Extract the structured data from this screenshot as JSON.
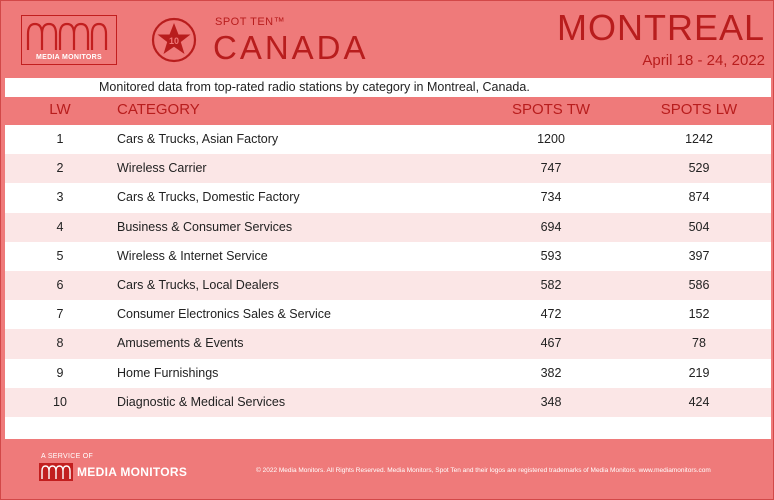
{
  "header": {
    "logo_text": "MEDIA MONITORS",
    "badge_number": "10",
    "spot_ten": "SPOT TEN™",
    "country": "CANADA",
    "city": "MONTREAL",
    "dates": "April 18 - 24, 2022"
  },
  "subtitle": "Monitored data from top-rated radio stations by category in Montreal, Canada.",
  "columns": {
    "lw": "LW",
    "category": "CATEGORY",
    "spots_tw": "SPOTS TW",
    "spots_lw": "SPOTS LW"
  },
  "rows": [
    {
      "lw": "1",
      "category": "Cars & Trucks, Asian Factory",
      "tw": "1200",
      "lw_spots": "1242"
    },
    {
      "lw": "2",
      "category": "Wireless Carrier",
      "tw": "747",
      "lw_spots": "529"
    },
    {
      "lw": "3",
      "category": "Cars & Trucks, Domestic Factory",
      "tw": "734",
      "lw_spots": "874"
    },
    {
      "lw": "4",
      "category": "Business & Consumer Services",
      "tw": "694",
      "lw_spots": "504"
    },
    {
      "lw": "5",
      "category": "Wireless & Internet Service",
      "tw": "593",
      "lw_spots": "397"
    },
    {
      "lw": "6",
      "category": "Cars & Trucks, Local Dealers",
      "tw": "582",
      "lw_spots": "586"
    },
    {
      "lw": "7",
      "category": "Consumer Electronics Sales & Service",
      "tw": "472",
      "lw_spots": "152"
    },
    {
      "lw": "8",
      "category": "Amusements & Events",
      "tw": "467",
      "lw_spots": "78"
    },
    {
      "lw": "9",
      "category": "Home Furnishings",
      "tw": "382",
      "lw_spots": "219"
    },
    {
      "lw": "10",
      "category": "Diagnostic & Medical Services",
      "tw": "348",
      "lw_spots": "424"
    }
  ],
  "footer": {
    "service_of": "A SERVICE OF",
    "logo_text": "MEDIA MONITORS",
    "copyright": "© 2022 Media Monitors. All Rights Reserved. Media Monitors, Spot Ten and their logos are registered trademarks of Media Monitors. www.mediamonitors.com"
  },
  "colors": {
    "background": "#ef7a7a",
    "accent": "#b81d1d",
    "row_alt": "#fbe6e6"
  }
}
